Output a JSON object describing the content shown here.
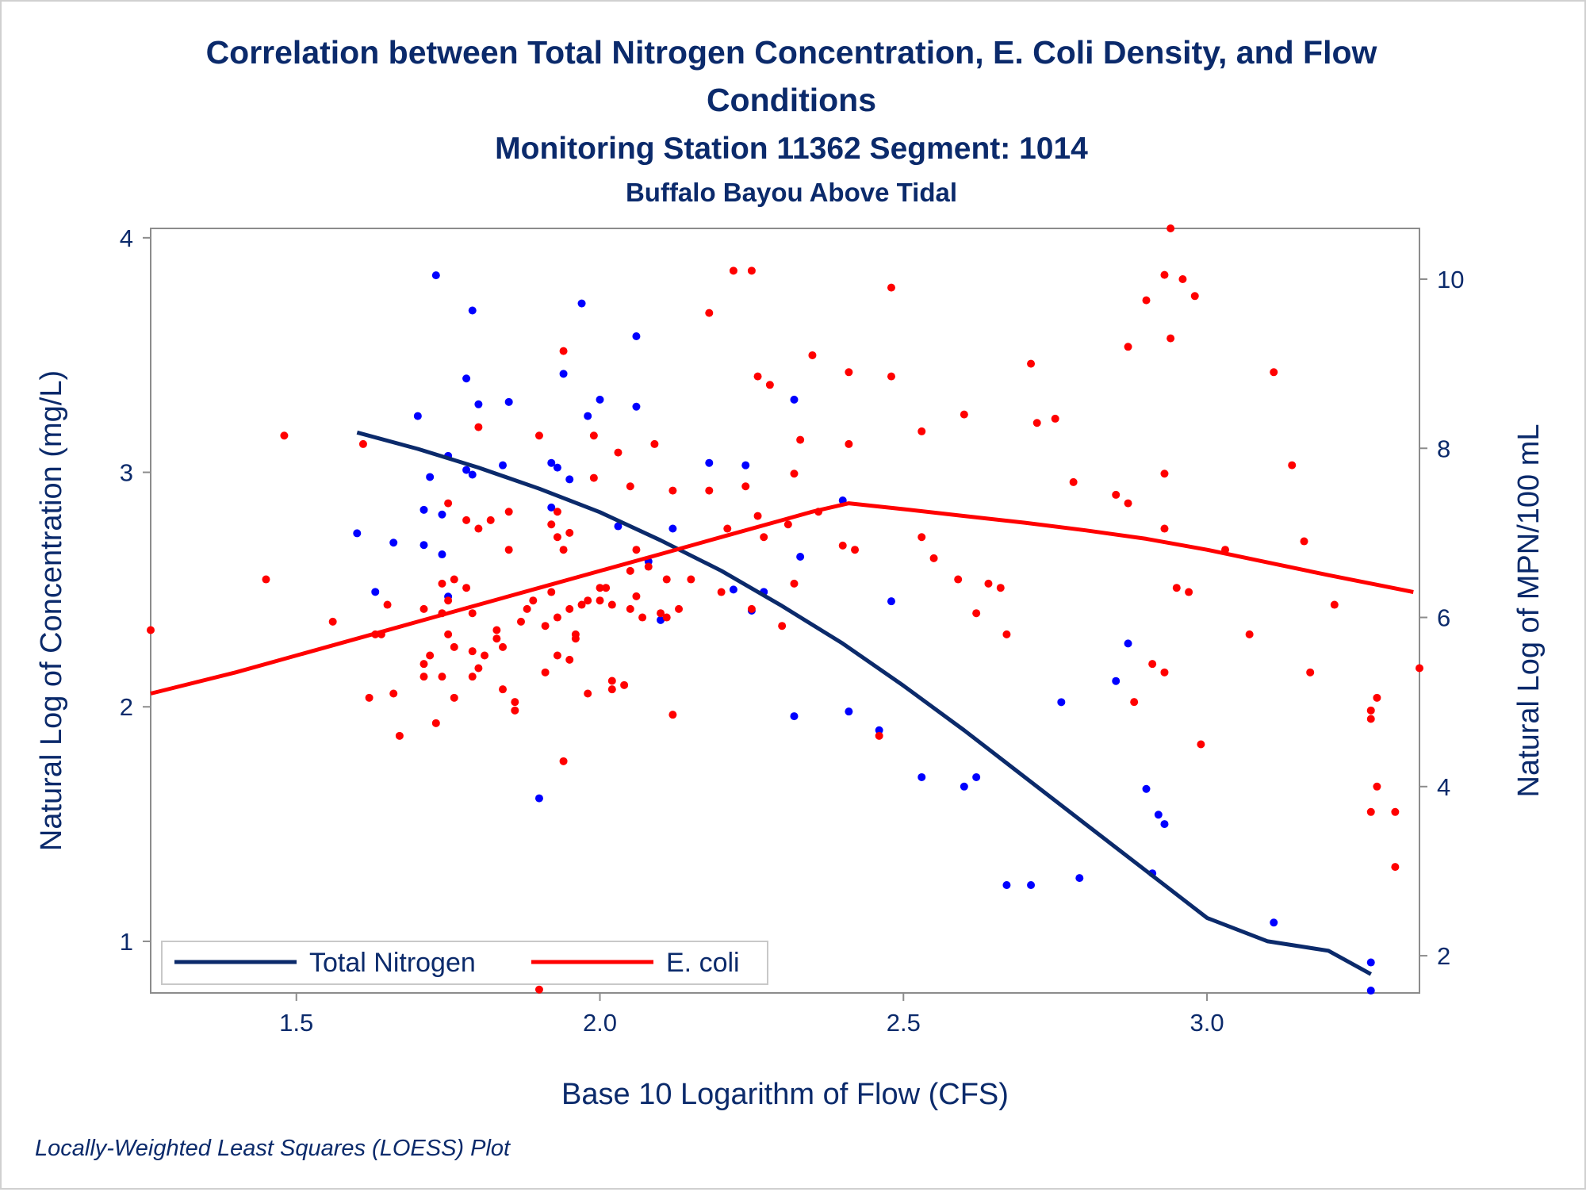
{
  "chart_data": {
    "type": "scatter",
    "title_lines": [
      "Correlation between Total Nitrogen Concentration, E. Coli Density, and Flow",
      "Conditions"
    ],
    "subtitle": "Monitoring Station 11362 Segment: 1014",
    "subtitle2": "Buffalo Bayou Above Tidal",
    "xlabel": "Base 10 Logarithm of Flow (CFS)",
    "ylabel_left": "Natural Log of Concentration (mg/L)",
    "ylabel_right": "Natural Log of MPN/100 mL",
    "footnote": "Locally-Weighted Least Squares (LOESS) Plot",
    "xlim": [
      1.26,
      3.35
    ],
    "ylim_left": [
      0.78,
      4.04
    ],
    "ylim_right": [
      1.56,
      10.6
    ],
    "x_ticks": [
      "1.5",
      "2.0",
      "2.5",
      "3.0"
    ],
    "y_left_ticks": [
      "1",
      "2",
      "3",
      "4"
    ],
    "y_right_ticks": [
      "2",
      "4",
      "6",
      "8",
      "10"
    ],
    "grid": false,
    "legend_position": "bottom-left",
    "legend": [
      {
        "label": "Total Nitrogen",
        "color": "#0b2a6b"
      },
      {
        "label": "E. coli",
        "color": "#ff0000"
      }
    ],
    "series": [
      {
        "name": "Total Nitrogen",
        "axis": "left",
        "marker_color": "#0000ff",
        "line_color": "#0b2a6b",
        "points": [
          [
            1.6,
            2.74
          ],
          [
            1.63,
            2.49
          ],
          [
            1.66,
            2.7
          ],
          [
            1.7,
            3.24
          ],
          [
            1.71,
            2.69
          ],
          [
            1.71,
            2.84
          ],
          [
            1.72,
            2.98
          ],
          [
            1.73,
            3.84
          ],
          [
            1.74,
            2.65
          ],
          [
            1.74,
            2.82
          ],
          [
            1.75,
            2.47
          ],
          [
            1.75,
            3.07
          ],
          [
            1.78,
            3.4
          ],
          [
            1.78,
            3.01
          ],
          [
            1.79,
            3.69
          ],
          [
            1.79,
            2.99
          ],
          [
            1.8,
            3.29
          ],
          [
            1.84,
            3.03
          ],
          [
            1.85,
            3.3
          ],
          [
            1.9,
            1.61
          ],
          [
            1.92,
            2.85
          ],
          [
            1.92,
            3.04
          ],
          [
            1.93,
            3.02
          ],
          [
            1.94,
            3.42
          ],
          [
            1.95,
            2.97
          ],
          [
            1.97,
            3.72
          ],
          [
            1.98,
            3.24
          ],
          [
            2.0,
            3.31
          ],
          [
            2.03,
            2.77
          ],
          [
            2.06,
            3.58
          ],
          [
            2.06,
            3.28
          ],
          [
            2.08,
            2.62
          ],
          [
            2.1,
            2.37
          ],
          [
            2.12,
            2.76
          ],
          [
            2.18,
            3.04
          ],
          [
            2.22,
            2.5
          ],
          [
            2.24,
            3.03
          ],
          [
            2.25,
            2.41
          ],
          [
            2.27,
            2.49
          ],
          [
            2.32,
            3.31
          ],
          [
            2.32,
            1.96
          ],
          [
            2.33,
            2.64
          ],
          [
            2.4,
            2.88
          ],
          [
            2.41,
            1.98
          ],
          [
            2.46,
            1.9
          ],
          [
            2.48,
            2.45
          ],
          [
            2.53,
            1.7
          ],
          [
            2.6,
            1.66
          ],
          [
            2.62,
            1.7
          ],
          [
            2.67,
            1.24
          ],
          [
            2.71,
            1.24
          ],
          [
            2.76,
            2.02
          ],
          [
            2.79,
            1.27
          ],
          [
            2.85,
            2.11
          ],
          [
            2.87,
            2.27
          ],
          [
            2.9,
            1.65
          ],
          [
            2.91,
            1.29
          ],
          [
            2.92,
            1.54
          ],
          [
            2.93,
            1.5
          ],
          [
            3.11,
            1.08
          ],
          [
            3.27,
            0.91
          ],
          [
            3.27,
            0.79
          ]
        ],
        "loess": [
          [
            1.6,
            3.17
          ],
          [
            1.7,
            3.1
          ],
          [
            1.8,
            3.02
          ],
          [
            1.9,
            2.93
          ],
          [
            2.0,
            2.83
          ],
          [
            2.1,
            2.71
          ],
          [
            2.2,
            2.58
          ],
          [
            2.3,
            2.43
          ],
          [
            2.4,
            2.27
          ],
          [
            2.5,
            2.09
          ],
          [
            2.6,
            1.9
          ],
          [
            2.7,
            1.7
          ],
          [
            2.8,
            1.5
          ],
          [
            2.9,
            1.3
          ],
          [
            3.0,
            1.1
          ],
          [
            3.1,
            1.0
          ],
          [
            3.2,
            0.96
          ],
          [
            3.27,
            0.86
          ]
        ]
      },
      {
        "name": "E. coli",
        "axis": "right",
        "marker_color": "#ff0000",
        "line_color": "#ff0000",
        "points": [
          [
            1.26,
            5.85
          ],
          [
            1.45,
            6.45
          ],
          [
            1.48,
            8.15
          ],
          [
            1.56,
            5.95
          ],
          [
            1.61,
            8.05
          ],
          [
            1.62,
            5.05
          ],
          [
            1.63,
            5.8
          ],
          [
            1.64,
            5.8
          ],
          [
            1.65,
            6.15
          ],
          [
            1.66,
            5.1
          ],
          [
            1.67,
            4.6
          ],
          [
            1.71,
            5.45
          ],
          [
            1.71,
            5.3
          ],
          [
            1.71,
            6.1
          ],
          [
            1.72,
            5.55
          ],
          [
            1.73,
            4.75
          ],
          [
            1.74,
            5.3
          ],
          [
            1.74,
            6.05
          ],
          [
            1.74,
            6.4
          ],
          [
            1.75,
            7.35
          ],
          [
            1.75,
            5.8
          ],
          [
            1.75,
            6.2
          ],
          [
            1.76,
            5.05
          ],
          [
            1.76,
            5.65
          ],
          [
            1.76,
            6.45
          ],
          [
            1.78,
            7.15
          ],
          [
            1.78,
            6.35
          ],
          [
            1.79,
            6.05
          ],
          [
            1.79,
            5.6
          ],
          [
            1.79,
            5.3
          ],
          [
            1.8,
            7.05
          ],
          [
            1.8,
            5.4
          ],
          [
            1.8,
            8.25
          ],
          [
            1.81,
            5.55
          ],
          [
            1.82,
            7.15
          ],
          [
            1.83,
            5.85
          ],
          [
            1.83,
            5.75
          ],
          [
            1.84,
            5.65
          ],
          [
            1.84,
            5.15
          ],
          [
            1.85,
            7.25
          ],
          [
            1.85,
            6.8
          ],
          [
            1.86,
            5.0
          ],
          [
            1.86,
            4.9
          ],
          [
            1.87,
            5.95
          ],
          [
            1.88,
            6.1
          ],
          [
            1.89,
            6.2
          ],
          [
            1.9,
            8.15
          ],
          [
            1.9,
            1.6
          ],
          [
            1.91,
            5.35
          ],
          [
            1.91,
            5.9
          ],
          [
            1.92,
            6.3
          ],
          [
            1.92,
            7.1
          ],
          [
            1.93,
            7.25
          ],
          [
            1.93,
            6.95
          ],
          [
            1.93,
            6.0
          ],
          [
            1.93,
            5.55
          ],
          [
            1.94,
            9.15
          ],
          [
            1.94,
            4.3
          ],
          [
            1.94,
            6.8
          ],
          [
            1.95,
            5.5
          ],
          [
            1.95,
            7.0
          ],
          [
            1.95,
            6.1
          ],
          [
            1.96,
            5.75
          ],
          [
            1.96,
            5.8
          ],
          [
            1.97,
            6.15
          ],
          [
            1.98,
            5.1
          ],
          [
            1.98,
            6.2
          ],
          [
            1.99,
            8.15
          ],
          [
            1.99,
            7.65
          ],
          [
            2.0,
            6.2
          ],
          [
            2.0,
            6.35
          ],
          [
            2.01,
            6.35
          ],
          [
            2.02,
            5.25
          ],
          [
            2.02,
            5.15
          ],
          [
            2.02,
            6.15
          ],
          [
            2.03,
            7.95
          ],
          [
            2.04,
            5.2
          ],
          [
            2.05,
            7.55
          ],
          [
            2.05,
            6.55
          ],
          [
            2.05,
            6.1
          ],
          [
            2.06,
            6.25
          ],
          [
            2.06,
            6.8
          ],
          [
            2.07,
            6.0
          ],
          [
            2.08,
            6.6
          ],
          [
            2.09,
            8.05
          ],
          [
            2.1,
            6.05
          ],
          [
            2.11,
            6.45
          ],
          [
            2.11,
            6.0
          ],
          [
            2.12,
            7.5
          ],
          [
            2.12,
            4.85
          ],
          [
            2.13,
            6.1
          ],
          [
            2.15,
            6.45
          ],
          [
            2.18,
            9.6
          ],
          [
            2.18,
            7.5
          ],
          [
            2.2,
            6.3
          ],
          [
            2.21,
            7.05
          ],
          [
            2.22,
            10.1
          ],
          [
            2.24,
            7.55
          ],
          [
            2.25,
            6.1
          ],
          [
            2.25,
            10.1
          ],
          [
            2.26,
            8.85
          ],
          [
            2.26,
            7.2
          ],
          [
            2.27,
            6.95
          ],
          [
            2.28,
            8.75
          ],
          [
            2.3,
            5.9
          ],
          [
            2.31,
            7.1
          ],
          [
            2.32,
            6.4
          ],
          [
            2.32,
            7.7
          ],
          [
            2.33,
            8.1
          ],
          [
            2.35,
            9.1
          ],
          [
            2.36,
            7.25
          ],
          [
            2.4,
            6.85
          ],
          [
            2.41,
            8.9
          ],
          [
            2.41,
            8.05
          ],
          [
            2.42,
            6.8
          ],
          [
            2.46,
            4.6
          ],
          [
            2.48,
            9.9
          ],
          [
            2.48,
            8.85
          ],
          [
            2.53,
            8.2
          ],
          [
            2.53,
            6.95
          ],
          [
            2.55,
            6.7
          ],
          [
            2.59,
            6.45
          ],
          [
            2.6,
            8.4
          ],
          [
            2.62,
            6.05
          ],
          [
            2.64,
            6.4
          ],
          [
            2.66,
            6.35
          ],
          [
            2.67,
            5.8
          ],
          [
            2.71,
            9.0
          ],
          [
            2.72,
            8.3
          ],
          [
            2.75,
            8.35
          ],
          [
            2.78,
            7.6
          ],
          [
            2.85,
            7.45
          ],
          [
            2.87,
            7.35
          ],
          [
            2.87,
            9.2
          ],
          [
            2.88,
            5.0
          ],
          [
            2.9,
            9.75
          ],
          [
            2.91,
            5.45
          ],
          [
            2.93,
            10.05
          ],
          [
            2.93,
            7.7
          ],
          [
            2.93,
            7.05
          ],
          [
            2.93,
            5.35
          ],
          [
            2.94,
            9.3
          ],
          [
            2.94,
            10.6
          ],
          [
            2.95,
            6.35
          ],
          [
            2.96,
            10.0
          ],
          [
            2.97,
            6.3
          ],
          [
            2.98,
            9.8
          ],
          [
            2.99,
            4.5
          ],
          [
            3.03,
            6.8
          ],
          [
            3.07,
            5.8
          ],
          [
            3.11,
            8.9
          ],
          [
            3.14,
            7.8
          ],
          [
            3.16,
            6.9
          ],
          [
            3.17,
            5.35
          ],
          [
            3.21,
            6.15
          ],
          [
            3.27,
            3.7
          ],
          [
            3.27,
            4.8
          ],
          [
            3.27,
            4.9
          ],
          [
            3.28,
            5.05
          ],
          [
            3.28,
            4.0
          ],
          [
            3.31,
            3.7
          ],
          [
            3.31,
            3.05
          ],
          [
            3.35,
            5.4
          ]
        ],
        "loess": [
          [
            1.26,
            5.1
          ],
          [
            1.4,
            5.35
          ],
          [
            1.5,
            5.55
          ],
          [
            1.6,
            5.75
          ],
          [
            1.7,
            5.95
          ],
          [
            1.8,
            6.15
          ],
          [
            1.9,
            6.35
          ],
          [
            2.0,
            6.55
          ],
          [
            2.1,
            6.75
          ],
          [
            2.2,
            6.95
          ],
          [
            2.3,
            7.15
          ],
          [
            2.35,
            7.25
          ],
          [
            2.41,
            7.35
          ],
          [
            2.5,
            7.28
          ],
          [
            2.6,
            7.2
          ],
          [
            2.7,
            7.12
          ],
          [
            2.8,
            7.03
          ],
          [
            2.9,
            6.93
          ],
          [
            3.0,
            6.8
          ],
          [
            3.1,
            6.65
          ],
          [
            3.2,
            6.5
          ],
          [
            3.34,
            6.3
          ]
        ]
      }
    ]
  }
}
